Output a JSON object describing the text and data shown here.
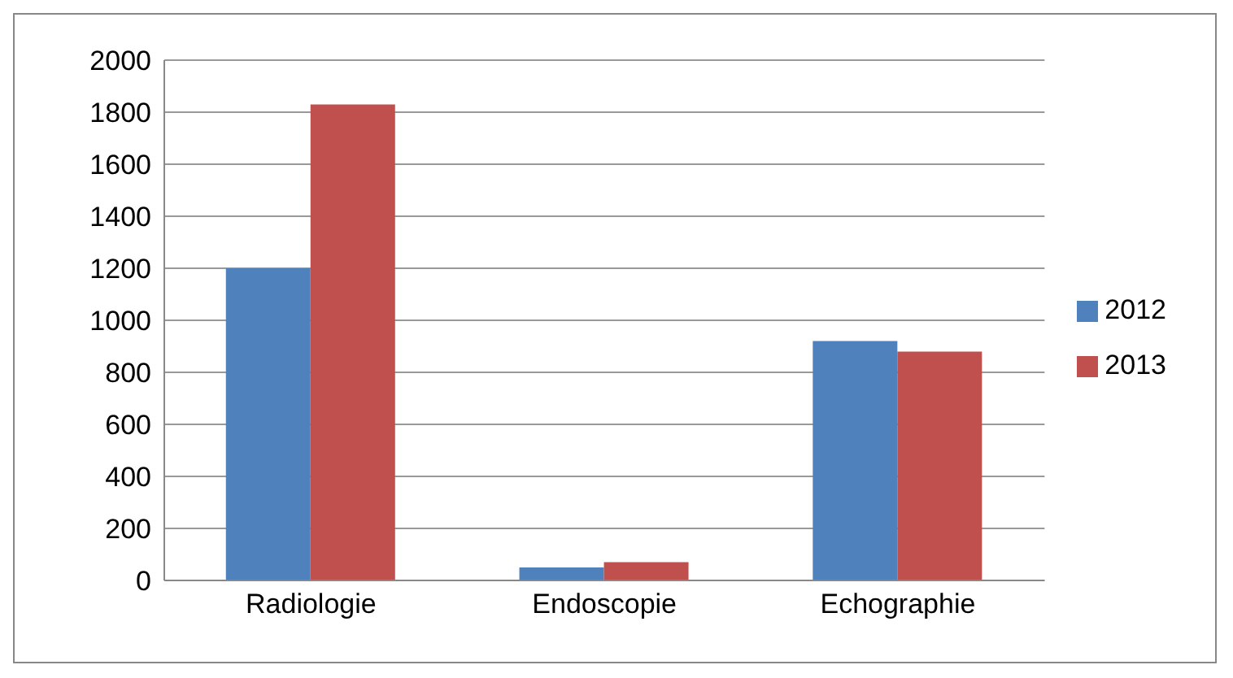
{
  "chart_data": {
    "type": "bar",
    "categories": [
      "Radiologie",
      "Endoscopie",
      "Echographie"
    ],
    "series": [
      {
        "name": "2012",
        "color": "#4f81bd",
        "values": [
          1200,
          50,
          920
        ]
      },
      {
        "name": "2013",
        "color": "#c0504d",
        "values": [
          1830,
          70,
          880
        ]
      }
    ],
    "ylim": [
      0,
      2000
    ],
    "yticks": [
      0,
      200,
      400,
      600,
      800,
      1000,
      1200,
      1400,
      1600,
      1800,
      2000
    ],
    "grid": "y",
    "legend": "right"
  }
}
